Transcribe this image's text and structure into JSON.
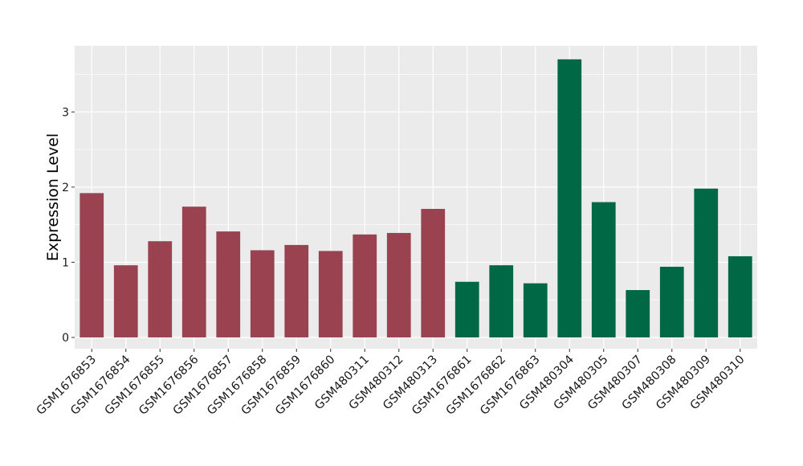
{
  "chart_data": {
    "type": "bar",
    "ylabel": "Expression Level",
    "xlabel": "",
    "ylim": [
      -0.15,
      3.88
    ],
    "yticks": [
      0,
      1,
      2,
      3
    ],
    "grid": true,
    "colors": {
      "group_a": "#9A4250",
      "group_b": "#006845",
      "panel": "#EBEBEB",
      "grid": "#FFFFFF"
    },
    "categories": [
      "GSM1676853",
      "GSM1676854",
      "GSM1676855",
      "GSM1676856",
      "GSM1676857",
      "GSM1676858",
      "GSM1676859",
      "GSM1676860",
      "GSM480311",
      "GSM480312",
      "GSM480313",
      "GSM1676861",
      "GSM1676862",
      "GSM1676863",
      "GSM480304",
      "GSM480305",
      "GSM480307",
      "GSM480308",
      "GSM480309",
      "GSM480310"
    ],
    "values": [
      1.92,
      0.96,
      1.28,
      1.74,
      1.41,
      1.16,
      1.23,
      1.15,
      1.37,
      1.39,
      1.71,
      0.74,
      0.96,
      0.72,
      3.7,
      1.8,
      0.63,
      0.94,
      1.98,
      1.08
    ],
    "groups": [
      "a",
      "a",
      "a",
      "a",
      "a",
      "a",
      "a",
      "a",
      "a",
      "a",
      "a",
      "b",
      "b",
      "b",
      "b",
      "b",
      "b",
      "b",
      "b",
      "b"
    ]
  }
}
